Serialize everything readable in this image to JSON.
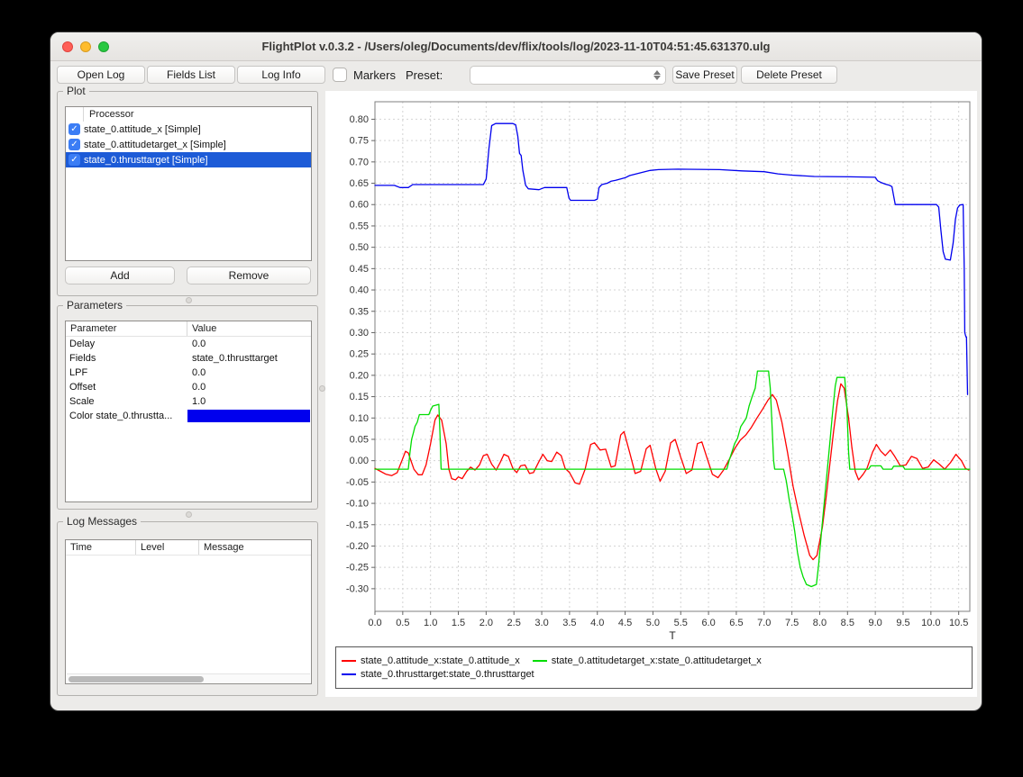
{
  "window": {
    "title": "FlightPlot v.0.3.2 - /Users/oleg/Documents/dev/flix/tools/log/2023-11-10T04:51:45.631370.ulg"
  },
  "toolbar": {
    "open_log": "Open Log",
    "fields_list": "Fields List",
    "log_info": "Log Info",
    "markers_label": "Markers",
    "markers_checked": false,
    "preset_label": "Preset:",
    "preset_value": "",
    "save_preset": "Save Preset",
    "delete_preset": "Delete Preset"
  },
  "plot_panel": {
    "title": "Plot",
    "column_header": "Processor",
    "rows": [
      {
        "label": "state_0.attitude_x [Simple]",
        "checked": true,
        "selected": false
      },
      {
        "label": "state_0.attitudetarget_x [Simple]",
        "checked": true,
        "selected": false
      },
      {
        "label": "state_0.thrusttarget [Simple]",
        "checked": true,
        "selected": true
      }
    ],
    "add_button": "Add",
    "remove_button": "Remove"
  },
  "parameters_panel": {
    "title": "Parameters",
    "columns": [
      "Parameter",
      "Value"
    ],
    "rows": [
      {
        "param": "Delay",
        "value": "0.0",
        "is_color": false
      },
      {
        "param": "Fields",
        "value": "state_0.thrusttarget",
        "is_color": false
      },
      {
        "param": "LPF",
        "value": "0.0",
        "is_color": false
      },
      {
        "param": "Offset",
        "value": "0.0",
        "is_color": false
      },
      {
        "param": "Scale",
        "value": "1.0",
        "is_color": false
      },
      {
        "param": "Color state_0.thrustta...",
        "value": "#0000ee",
        "is_color": true
      }
    ]
  },
  "log_messages_panel": {
    "title": "Log Messages",
    "columns": [
      "Time",
      "Level",
      "Message"
    ],
    "rows": []
  },
  "colors": {
    "selection_blue": "#1d5bd7",
    "checkbox_blue": "#3b7df5",
    "grid": "#d4d4d4",
    "plot_border": "#7f7f7f"
  },
  "chart_data": {
    "type": "line",
    "title": "",
    "xlabel": "T",
    "ylabel": "",
    "xlim": [
      0,
      10.7
    ],
    "ylim": [
      -0.353,
      0.841
    ],
    "grid": true,
    "legend_position": "bottom",
    "x_tick_labels": [
      "0.0",
      "0.5",
      "1.0",
      "1.5",
      "2.0",
      "2.5",
      "3.0",
      "3.5",
      "4.0",
      "4.5",
      "5.0",
      "5.5",
      "6.0",
      "6.5",
      "7.0",
      "7.5",
      "8.0",
      "8.5",
      "9.0",
      "9.5",
      "10.0",
      "10.5"
    ],
    "y_tick_labels": [
      "0.80",
      "0.75",
      "0.70",
      "0.65",
      "0.60",
      "0.55",
      "0.50",
      "0.45",
      "0.40",
      "0.35",
      "0.30",
      "0.25",
      "0.20",
      "0.15",
      "0.10",
      "0.05",
      "0.00",
      "-0.05",
      "-0.10",
      "-0.15",
      "-0.20",
      "-0.25",
      "-0.30"
    ],
    "legend_rows": [
      [
        0,
        1
      ],
      [
        2
      ]
    ],
    "series": [
      {
        "name": "state_0.attitude_x:state_0.attitude_x",
        "color": "#ff0000",
        "points": [
          [
            0,
            -0.018
          ],
          [
            0.1,
            -0.025
          ],
          [
            0.2,
            -0.032
          ],
          [
            0.3,
            -0.035
          ],
          [
            0.4,
            -0.028
          ],
          [
            0.5,
            0.005
          ],
          [
            0.55,
            0.022
          ],
          [
            0.6,
            0.018
          ],
          [
            0.7,
            -0.02
          ],
          [
            0.78,
            -0.033
          ],
          [
            0.85,
            -0.033
          ],
          [
            0.92,
            -0.01
          ],
          [
            1.0,
            0.04
          ],
          [
            1.08,
            0.095
          ],
          [
            1.13,
            0.107
          ],
          [
            1.2,
            0.095
          ],
          [
            1.28,
            0.04
          ],
          [
            1.33,
            -0.02
          ],
          [
            1.38,
            -0.042
          ],
          [
            1.45,
            -0.045
          ],
          [
            1.5,
            -0.038
          ],
          [
            1.57,
            -0.042
          ],
          [
            1.65,
            -0.025
          ],
          [
            1.72,
            -0.015
          ],
          [
            1.8,
            -0.022
          ],
          [
            1.88,
            -0.01
          ],
          [
            1.95,
            0.012
          ],
          [
            2.02,
            0.015
          ],
          [
            2.1,
            -0.008
          ],
          [
            2.18,
            -0.022
          ],
          [
            2.25,
            -0.005
          ],
          [
            2.32,
            0.015
          ],
          [
            2.4,
            0.01
          ],
          [
            2.48,
            -0.018
          ],
          [
            2.55,
            -0.028
          ],
          [
            2.62,
            -0.012
          ],
          [
            2.7,
            -0.01
          ],
          [
            2.78,
            -0.03
          ],
          [
            2.85,
            -0.028
          ],
          [
            2.95,
            -0.002
          ],
          [
            3.02,
            0.015
          ],
          [
            3.1,
            0.0
          ],
          [
            3.18,
            -0.002
          ],
          [
            3.27,
            0.02
          ],
          [
            3.35,
            0.012
          ],
          [
            3.42,
            -0.018
          ],
          [
            3.5,
            -0.028
          ],
          [
            3.6,
            -0.052
          ],
          [
            3.68,
            -0.055
          ],
          [
            3.78,
            -0.02
          ],
          [
            3.88,
            0.038
          ],
          [
            3.95,
            0.042
          ],
          [
            4.05,
            0.025
          ],
          [
            4.15,
            0.027
          ],
          [
            4.25,
            -0.015
          ],
          [
            4.32,
            -0.012
          ],
          [
            4.42,
            0.06
          ],
          [
            4.48,
            0.068
          ],
          [
            4.58,
            0.02
          ],
          [
            4.68,
            -0.03
          ],
          [
            4.78,
            -0.025
          ],
          [
            4.88,
            0.028
          ],
          [
            4.95,
            0.036
          ],
          [
            5.05,
            -0.018
          ],
          [
            5.13,
            -0.048
          ],
          [
            5.22,
            -0.025
          ],
          [
            5.32,
            0.042
          ],
          [
            5.4,
            0.05
          ],
          [
            5.5,
            0.008
          ],
          [
            5.6,
            -0.03
          ],
          [
            5.7,
            -0.022
          ],
          [
            5.8,
            0.04
          ],
          [
            5.88,
            0.044
          ],
          [
            5.97,
            0.008
          ],
          [
            6.07,
            -0.032
          ],
          [
            6.17,
            -0.04
          ],
          [
            6.27,
            -0.022
          ],
          [
            6.37,
            0.002
          ],
          [
            6.47,
            0.028
          ],
          [
            6.57,
            0.048
          ],
          [
            6.67,
            0.06
          ],
          [
            6.77,
            0.078
          ],
          [
            6.87,
            0.1
          ],
          [
            6.97,
            0.12
          ],
          [
            7.07,
            0.142
          ],
          [
            7.15,
            0.155
          ],
          [
            7.22,
            0.142
          ],
          [
            7.32,
            0.09
          ],
          [
            7.42,
            0.02
          ],
          [
            7.52,
            -0.06
          ],
          [
            7.62,
            -0.12
          ],
          [
            7.72,
            -0.175
          ],
          [
            7.82,
            -0.222
          ],
          [
            7.88,
            -0.232
          ],
          [
            7.95,
            -0.222
          ],
          [
            8.05,
            -0.155
          ],
          [
            8.12,
            -0.08
          ],
          [
            8.18,
            -0.01
          ],
          [
            8.25,
            0.07
          ],
          [
            8.32,
            0.14
          ],
          [
            8.38,
            0.18
          ],
          [
            8.44,
            0.17
          ],
          [
            8.52,
            0.1
          ],
          [
            8.58,
            0.03
          ],
          [
            8.64,
            -0.025
          ],
          [
            8.7,
            -0.045
          ],
          [
            8.78,
            -0.032
          ],
          [
            8.85,
            -0.018
          ],
          [
            8.95,
            0.02
          ],
          [
            9.02,
            0.038
          ],
          [
            9.1,
            0.022
          ],
          [
            9.18,
            0.012
          ],
          [
            9.27,
            0.025
          ],
          [
            9.35,
            0.01
          ],
          [
            9.45,
            -0.012
          ],
          [
            9.55,
            -0.01
          ],
          [
            9.65,
            0.01
          ],
          [
            9.75,
            0.005
          ],
          [
            9.85,
            -0.018
          ],
          [
            9.95,
            -0.015
          ],
          [
            10.05,
            0.002
          ],
          [
            10.15,
            -0.008
          ],
          [
            10.25,
            -0.02
          ],
          [
            10.35,
            -0.005
          ],
          [
            10.45,
            0.015
          ],
          [
            10.55,
            0.0
          ],
          [
            10.62,
            -0.018
          ],
          [
            10.68,
            -0.022
          ]
        ]
      },
      {
        "name": "state_0.attitudetarget_x:state_0.attitudetarget_x",
        "color": "#00dd00",
        "points": [
          [
            0,
            -0.02
          ],
          [
            0.6,
            -0.02
          ],
          [
            0.63,
            0.02
          ],
          [
            0.66,
            0.05
          ],
          [
            0.69,
            0.065
          ],
          [
            0.72,
            0.08
          ],
          [
            0.76,
            0.09
          ],
          [
            0.8,
            0.108
          ],
          [
            0.97,
            0.108
          ],
          [
            1.0,
            0.118
          ],
          [
            1.04,
            0.128
          ],
          [
            1.15,
            0.132
          ],
          [
            1.17,
            0.06
          ],
          [
            1.19,
            -0.02
          ],
          [
            6.33,
            -0.02
          ],
          [
            6.37,
            0.0
          ],
          [
            6.42,
            0.02
          ],
          [
            6.47,
            0.04
          ],
          [
            6.52,
            0.052
          ],
          [
            6.58,
            0.08
          ],
          [
            6.63,
            0.09
          ],
          [
            6.68,
            0.1
          ],
          [
            6.73,
            0.128
          ],
          [
            6.79,
            0.152
          ],
          [
            6.84,
            0.17
          ],
          [
            6.88,
            0.21
          ],
          [
            7.08,
            0.21
          ],
          [
            7.11,
            0.17
          ],
          [
            7.14,
            0.09
          ],
          [
            7.17,
            0.0
          ],
          [
            7.19,
            -0.02
          ],
          [
            7.35,
            -0.02
          ],
          [
            7.4,
            -0.048
          ],
          [
            7.45,
            -0.09
          ],
          [
            7.5,
            -0.125
          ],
          [
            7.55,
            -0.165
          ],
          [
            7.6,
            -0.215
          ],
          [
            7.65,
            -0.25
          ],
          [
            7.7,
            -0.272
          ],
          [
            7.76,
            -0.29
          ],
          [
            7.85,
            -0.295
          ],
          [
            7.94,
            -0.29
          ],
          [
            7.98,
            -0.245
          ],
          [
            8.03,
            -0.17
          ],
          [
            8.08,
            -0.1
          ],
          [
            8.13,
            -0.03
          ],
          [
            8.18,
            0.04
          ],
          [
            8.23,
            0.11
          ],
          [
            8.28,
            0.175
          ],
          [
            8.31,
            0.195
          ],
          [
            8.45,
            0.195
          ],
          [
            8.49,
            0.12
          ],
          [
            8.52,
            0.02
          ],
          [
            8.54,
            -0.02
          ],
          [
            8.88,
            -0.02
          ],
          [
            8.92,
            -0.012
          ],
          [
            9.1,
            -0.012
          ],
          [
            9.14,
            -0.02
          ],
          [
            9.3,
            -0.02
          ],
          [
            9.33,
            -0.013
          ],
          [
            9.5,
            -0.013
          ],
          [
            9.53,
            -0.02
          ],
          [
            10.7,
            -0.02
          ]
        ]
      },
      {
        "name": "state_0.thrusttarget:state_0.thrusttarget",
        "color": "#0000ee",
        "points": [
          [
            0,
            0.645
          ],
          [
            0.35,
            0.645
          ],
          [
            0.45,
            0.64
          ],
          [
            0.6,
            0.64
          ],
          [
            0.68,
            0.647
          ],
          [
            1.95,
            0.647
          ],
          [
            2.0,
            0.66
          ],
          [
            2.05,
            0.73
          ],
          [
            2.1,
            0.785
          ],
          [
            2.17,
            0.79
          ],
          [
            2.48,
            0.79
          ],
          [
            2.53,
            0.787
          ],
          [
            2.57,
            0.76
          ],
          [
            2.6,
            0.72
          ],
          [
            2.63,
            0.715
          ],
          [
            2.66,
            0.68
          ],
          [
            2.71,
            0.645
          ],
          [
            2.76,
            0.637
          ],
          [
            2.95,
            0.635
          ],
          [
            3.05,
            0.64
          ],
          [
            3.45,
            0.64
          ],
          [
            3.49,
            0.615
          ],
          [
            3.52,
            0.61
          ],
          [
            3.95,
            0.61
          ],
          [
            4.0,
            0.613
          ],
          [
            4.03,
            0.64
          ],
          [
            4.08,
            0.647
          ],
          [
            4.18,
            0.65
          ],
          [
            4.25,
            0.655
          ],
          [
            4.33,
            0.657
          ],
          [
            4.42,
            0.66
          ],
          [
            4.5,
            0.663
          ],
          [
            4.58,
            0.668
          ],
          [
            4.7,
            0.672
          ],
          [
            4.82,
            0.676
          ],
          [
            4.95,
            0.68
          ],
          [
            5.1,
            0.682
          ],
          [
            5.45,
            0.683
          ],
          [
            6.2,
            0.682
          ],
          [
            6.6,
            0.679
          ],
          [
            7.0,
            0.677
          ],
          [
            7.25,
            0.672
          ],
          [
            7.5,
            0.669
          ],
          [
            7.9,
            0.666
          ],
          [
            8.55,
            0.665
          ],
          [
            9.0,
            0.664
          ],
          [
            9.04,
            0.656
          ],
          [
            9.1,
            0.652
          ],
          [
            9.18,
            0.648
          ],
          [
            9.26,
            0.645
          ],
          [
            9.3,
            0.642
          ],
          [
            9.33,
            0.62
          ],
          [
            9.36,
            0.6
          ],
          [
            10.1,
            0.6
          ],
          [
            10.14,
            0.594
          ],
          [
            10.18,
            0.54
          ],
          [
            10.22,
            0.49
          ],
          [
            10.26,
            0.472
          ],
          [
            10.35,
            0.47
          ],
          [
            10.4,
            0.51
          ],
          [
            10.44,
            0.565
          ],
          [
            10.48,
            0.592
          ],
          [
            10.52,
            0.599
          ],
          [
            10.58,
            0.6
          ],
          [
            10.6,
            0.45
          ],
          [
            10.61,
            0.3
          ],
          [
            10.63,
            0.29
          ],
          [
            10.64,
            0.29
          ],
          [
            10.66,
            0.155
          ]
        ]
      }
    ]
  }
}
